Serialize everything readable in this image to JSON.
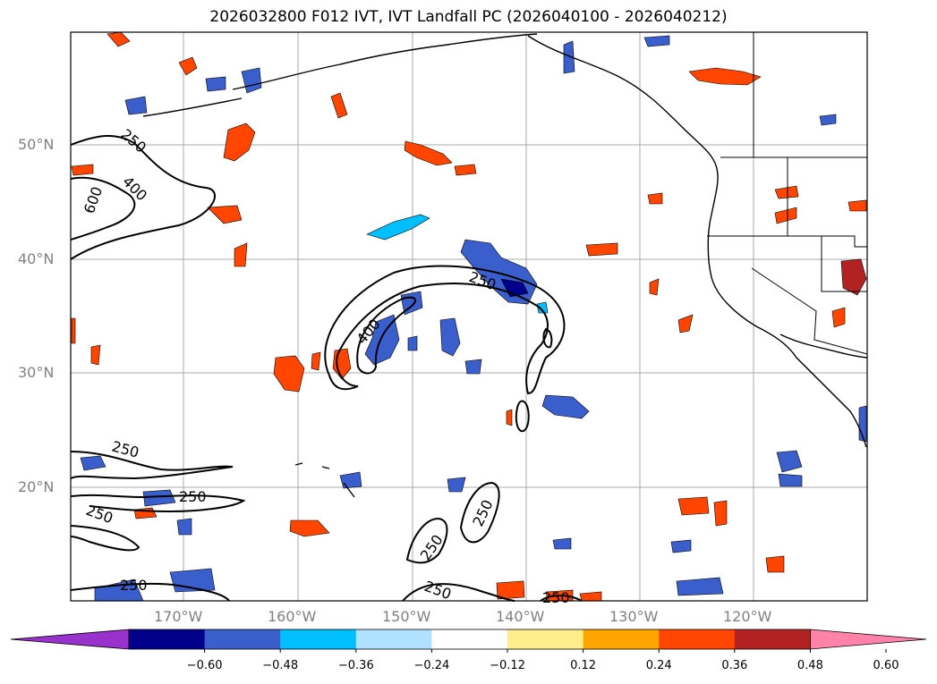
{
  "title": "2026032800 F012 IVT, IVT Landfall PC (2026040100 - 2026040212)",
  "lat_labels": [
    "50°N",
    "40°N",
    "30°N",
    "20°N"
  ],
  "lon_labels": [
    "170°W",
    "160°W",
    "150°W",
    "140°W",
    "130°W",
    "120°W"
  ],
  "contour_labels": [
    "250",
    "400",
    "600",
    "250",
    "400",
    "250",
    "250",
    "250",
    "250",
    "250",
    "250",
    "250",
    "250"
  ],
  "colorbar": {
    "ticks": [
      "−0.60",
      "−0.48",
      "−0.36",
      "−0.24",
      "−0.12",
      "0.12",
      "0.24",
      "0.36",
      "0.48",
      "0.60"
    ],
    "colors": [
      "#9932cc",
      "#00008b",
      "#3a5fcd",
      "#00bfff",
      "#b0e2ff",
      "#ffffff",
      "#ffec8b",
      "#ffa500",
      "#ff4500",
      "#b22222",
      "#ff82ab"
    ]
  }
}
